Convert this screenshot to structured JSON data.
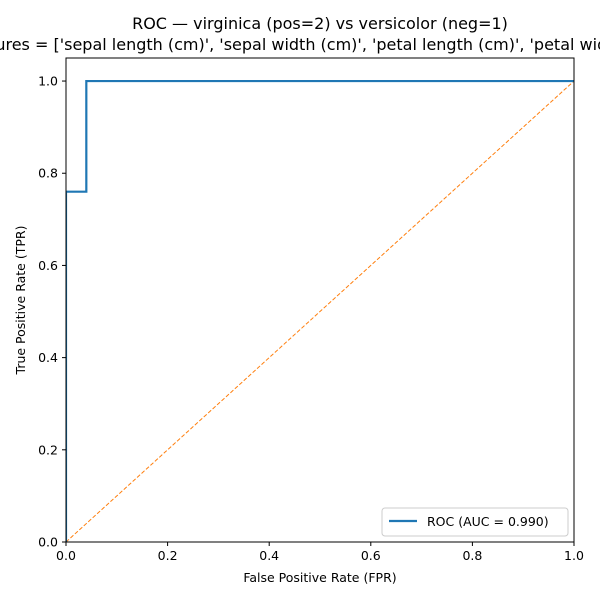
{
  "chart_data": {
    "type": "line",
    "title": "ROC — virginica (pos=2) vs versicolor (neg=1)",
    "subtitle": "features = ['sepal length (cm)', 'sepal width (cm)', 'petal length (cm)', 'petal width (cm)']",
    "xlabel": "False Positive Rate (FPR)",
    "ylabel": "True Positive Rate (TPR)",
    "xlim": [
      0,
      1
    ],
    "ylim": [
      0,
      1.05
    ],
    "xticks": [
      0,
      0.2,
      0.4,
      0.6,
      0.8,
      1.0
    ],
    "xtick_labels": [
      "0.0",
      "0.2",
      "0.4",
      "0.6",
      "0.8",
      "1.0"
    ],
    "yticks": [
      0,
      0.2,
      0.4,
      0.6,
      0.8,
      1.0
    ],
    "ytick_labels": [
      "0.0",
      "0.2",
      "0.4",
      "0.6",
      "0.8",
      "1.0"
    ],
    "grid": false,
    "legend_position": "lower-right",
    "series": [
      {
        "name": "ROC (AUC = 0.990)",
        "color": "#1f77b4",
        "style": "solid",
        "x": [
          0.0,
          0.0,
          0.04,
          0.04,
          1.0
        ],
        "y": [
          0.0,
          0.76,
          0.76,
          1.0,
          1.0
        ]
      },
      {
        "color": "#ff7f0e",
        "style": "dashed",
        "x": [
          0.0,
          1.0
        ],
        "y": [
          0.0,
          1.0
        ]
      }
    ]
  }
}
